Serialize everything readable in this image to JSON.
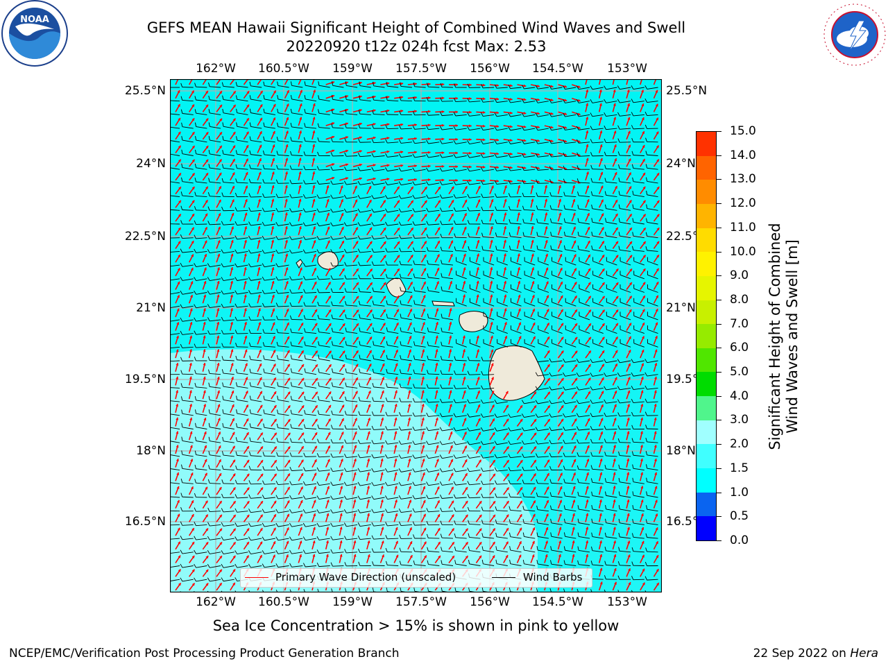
{
  "title_line1": "GEFS MEAN Hawaii Significant Height of Combined Wind Waves and Swell",
  "title_line2": "20220920 t12z 024h fcst   Max: 2.53",
  "lon_labels": [
    "162°W",
    "160.5°W",
    "159°W",
    "157.5°W",
    "156°W",
    "154.5°W",
    "153°W"
  ],
  "lat_labels": [
    "25.5°N",
    "24°N",
    "22.5°N",
    "21°N",
    "19.5°N",
    "18°N",
    "16.5°N"
  ],
  "legend": {
    "wave_label": "Primary Wave Direction (unscaled)",
    "wave_color": "#ff0000",
    "barb_label": "Wind Barbs",
    "barb_color": "#000000"
  },
  "colorbar": {
    "title_line1": "Significant Height of Combined",
    "title_line2": "Wind Waves and Swell [m]",
    "ticks": [
      "0.0",
      "0.5",
      "1.0",
      "1.5",
      "2.0",
      "3.0",
      "4.0",
      "5.0",
      "6.0",
      "7.0",
      "8.0",
      "9.0",
      "10.0",
      "11.0",
      "12.0",
      "13.0",
      "14.0",
      "15.0"
    ],
    "colors": [
      "#0000ff",
      "#0a64f0",
      "#00ffff",
      "#40ffff",
      "#a0ffff",
      "#50f58c",
      "#00dc00",
      "#50e600",
      "#96eb00",
      "#c8f000",
      "#e6f500",
      "#fff200",
      "#ffdc00",
      "#ffb400",
      "#ff8c00",
      "#ff6400",
      "#ff3200",
      "#ff0000"
    ]
  },
  "field_colors": {
    "ocean_high": "#00f2f2",
    "ocean_low": "#a6fcfa",
    "land": "#efeada",
    "grid": "#b0b0b0"
  },
  "sea_ice_note": "Sea Ice Concentration > 15% is shown in pink to yellow",
  "footer_left": "NCEP/EMC/Verification Post Processing Product Generation Branch",
  "footer_right_prefix": "22 Sep 2022 on ",
  "footer_right_machine": "Hera",
  "logos": {
    "left": "noaa-logo",
    "right": "nws-logo"
  }
}
